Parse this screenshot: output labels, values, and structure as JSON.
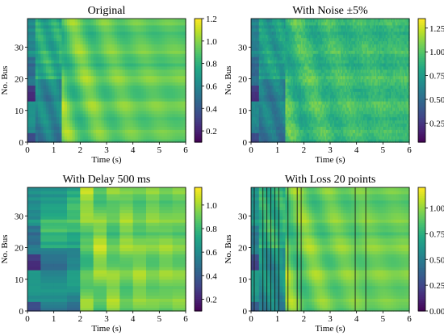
{
  "colors": {
    "colormap": "viridis",
    "axis": "#000000",
    "loss_line": "#1a1a1a"
  },
  "chart_data": [
    {
      "type": "heatmap",
      "title": "Original",
      "xlabel": "Time (s)",
      "ylabel": "No. Bus",
      "xlim": [
        0,
        6
      ],
      "ylim": [
        0,
        39
      ],
      "xticks": [
        "0",
        "1",
        "2",
        "3",
        "4",
        "5",
        "6"
      ],
      "yticks": [
        "0",
        "10",
        "20",
        "30"
      ],
      "colorbar": {
        "range": [
          0.1,
          1.2
        ],
        "ticks": [
          "0.2",
          "0.4",
          "0.6",
          "0.8",
          "1.0",
          "1.2"
        ]
      },
      "variant": "original",
      "buses": 39,
      "time_steps": 60
    },
    {
      "type": "heatmap",
      "title": "With Noise ±5%",
      "xlabel": "Time (s)",
      "ylabel": "No. Bus",
      "xlim": [
        0,
        6
      ],
      "ylim": [
        0,
        39
      ],
      "xticks": [
        "0",
        "1",
        "2",
        "3",
        "4",
        "5",
        "6"
      ],
      "yticks": [
        "0",
        "10",
        "20",
        "30"
      ],
      "colorbar": {
        "range": [
          0.05,
          1.35
        ],
        "ticks": [
          "0.25",
          "0.50",
          "0.75",
          "1.00",
          "1.25"
        ]
      },
      "variant": "noise",
      "buses": 39,
      "time_steps": 120
    },
    {
      "type": "heatmap",
      "title": "With Delay 500 ms",
      "xlabel": "Time (s)",
      "ylabel": "No. Bus",
      "xlim": [
        0,
        6
      ],
      "ylim": [
        0,
        39
      ],
      "xticks": [
        "0",
        "1",
        "2",
        "3",
        "4",
        "5",
        "6"
      ],
      "yticks": [
        "0",
        "10",
        "20",
        "30"
      ],
      "colorbar": {
        "range": [
          0.1,
          1.15
        ],
        "ticks": [
          "0.2",
          "0.4",
          "0.6",
          "0.8",
          "1.0"
        ]
      },
      "variant": "delay",
      "buses": 39,
      "time_steps": 12
    },
    {
      "type": "heatmap",
      "title": "With Loss 20 points",
      "xlabel": "Time (s)",
      "ylabel": "No. Bus",
      "xlim": [
        0,
        6
      ],
      "ylim": [
        0,
        39
      ],
      "xticks": [
        "0",
        "1",
        "2",
        "3",
        "4",
        "5",
        "6"
      ],
      "yticks": [
        "0",
        "10",
        "20",
        "30"
      ],
      "colorbar": {
        "range": [
          0.0,
          1.2
        ],
        "ticks": [
          "0.00",
          "0.25",
          "0.50",
          "0.75",
          "1.00"
        ]
      },
      "variant": "loss",
      "buses": 39,
      "time_steps": 60,
      "loss_times": [
        0.12,
        0.45,
        0.6,
        0.75,
        0.9,
        1.05,
        1.4,
        1.75,
        1.9,
        3.95,
        4.35
      ]
    }
  ]
}
